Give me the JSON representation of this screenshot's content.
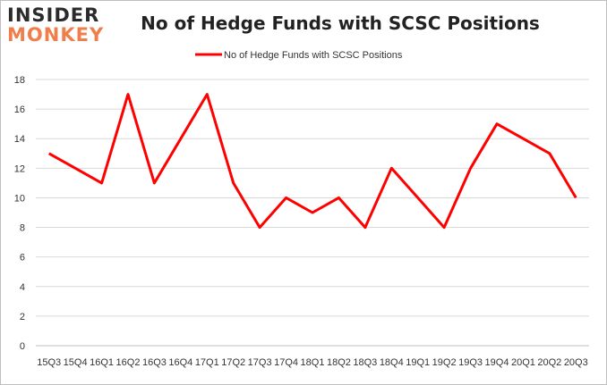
{
  "logo": {
    "line1": "INSIDER",
    "line2": "MONKEY"
  },
  "colors": {
    "series": "#ff0000",
    "grid": "#d9d9d9",
    "axis": "#bfbfbf"
  },
  "chart_data": {
    "type": "line",
    "title": "No of Hedge Funds with SCSC Positions",
    "xlabel": "",
    "ylabel": "",
    "ylim": [
      0,
      18
    ],
    "yticks": [
      0,
      2,
      4,
      6,
      8,
      10,
      12,
      14,
      16,
      18
    ],
    "grid": true,
    "legend_placement": "top-center",
    "categories": [
      "15Q3",
      "15Q4",
      "16Q1",
      "16Q2",
      "16Q3",
      "16Q4",
      "17Q1",
      "17Q2",
      "17Q3",
      "17Q4",
      "18Q1",
      "18Q2",
      "18Q3",
      "18Q4",
      "19Q1",
      "19Q2",
      "19Q3",
      "19Q4",
      "20Q1",
      "20Q2",
      "20Q3"
    ],
    "series": [
      {
        "name": "No of Hedge Funds with SCSC Positions",
        "values": [
          13,
          12,
          11,
          17,
          11,
          14,
          17,
          11,
          8,
          10,
          9,
          10,
          8,
          12,
          10,
          8,
          12,
          15,
          14,
          13,
          10
        ]
      }
    ]
  }
}
